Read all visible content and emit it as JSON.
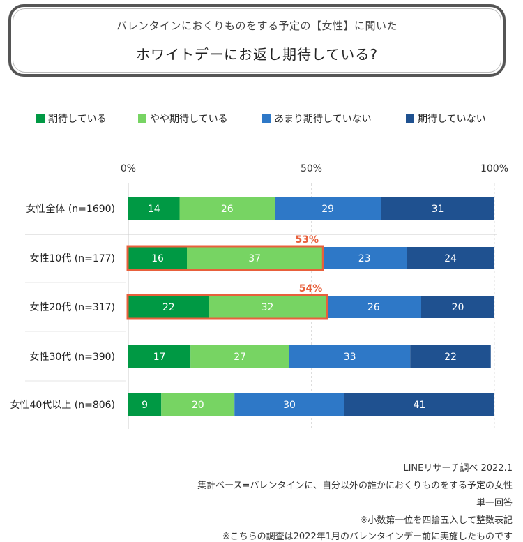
{
  "header": {
    "subtitle": "バレンタインにおくりものをする予定の【女性】に聞いた",
    "title": "ホワイトデーにお返し期待している?"
  },
  "colors": {
    "series": [
      "#009944",
      "#77d463",
      "#2e78c7",
      "#1f5190"
    ],
    "highlight": "#e8603c",
    "grid": "#dddddd",
    "divider": "#cccccc"
  },
  "chart_data": {
    "type": "bar",
    "orientation": "horizontal",
    "stacked": true,
    "unit": "%",
    "xlim": [
      0,
      100
    ],
    "ticks": [
      {
        "value": 0,
        "label": "0%"
      },
      {
        "value": 50,
        "label": "50%"
      },
      {
        "value": 100,
        "label": "100%"
      }
    ],
    "categories": [
      "女性全体 (n=1690)",
      "女性10代 (n=177)",
      "女性20代 (n=317)",
      "女性30代 (n=390)",
      "女性40代以上 (n=806)"
    ],
    "series": [
      {
        "name": "期待している",
        "values": [
          14,
          16,
          22,
          17,
          9
        ]
      },
      {
        "name": "やや期待している",
        "values": [
          26,
          37,
          32,
          27,
          20
        ]
      },
      {
        "name": "あまり期待していない",
        "values": [
          29,
          23,
          26,
          33,
          30
        ]
      },
      {
        "name": "期待していない",
        "values": [
          31,
          24,
          20,
          22,
          41
        ]
      }
    ],
    "annotations": [
      {
        "category_index": 1,
        "series_span": [
          0,
          1
        ],
        "label": "53%"
      },
      {
        "category_index": 2,
        "series_span": [
          0,
          1
        ],
        "label": "54%"
      }
    ],
    "legend_position": "top"
  },
  "footnotes": [
    "LINEリサーチ調べ 2022.1",
    "集計ベース=バレンタインに、自分以外の誰かにおくりものをする予定の女性",
    "単一回答",
    "※小数第一位を四捨五入して整数表記",
    "※こちらの調査は2022年1月のバレンタインデー前に実施したものです"
  ]
}
